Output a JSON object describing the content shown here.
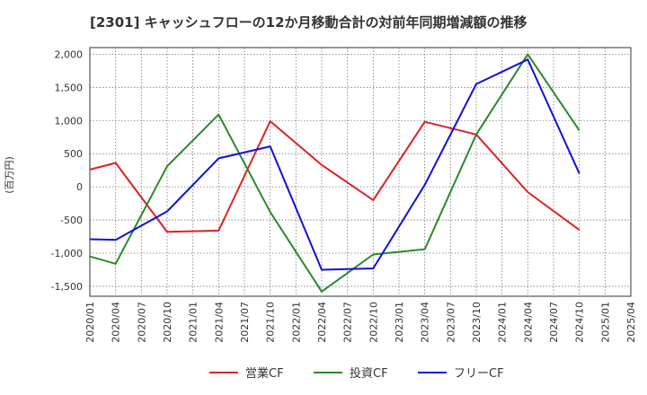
{
  "chart_data": {
    "type": "line",
    "title": "[2301]  キャッシュフローの12か月移動合計の対前年同期増減額の推移",
    "ylabel": "(百万円)",
    "xlabel": "",
    "ylim": [
      -1650,
      2100
    ],
    "yticks": [
      2000,
      1500,
      1000,
      500,
      0,
      -500,
      -1000,
      -1500
    ],
    "ytick_labels": [
      "2,000",
      "1,500",
      "1,000",
      "500",
      "0",
      "-500",
      "-1,000",
      "-1,500"
    ],
    "x_tick_labels": [
      "2020/01",
      "2020/04",
      "2020/07",
      "2020/10",
      "2021/01",
      "2021/04",
      "2021/07",
      "2021/10",
      "2022/01",
      "2022/04",
      "2022/07",
      "2022/10",
      "2023/01",
      "2023/04",
      "2023/07",
      "2023/10",
      "2024/01",
      "2024/04",
      "2024/07",
      "2024/10",
      "2025/01",
      "2025/04"
    ],
    "grid": true,
    "legend_position": "bottom",
    "series": [
      {
        "name": "営業CF",
        "color": "#e02020",
        "points": [
          {
            "x": "2020/01",
            "y": 260
          },
          {
            "x": "2020/04",
            "y": 360
          },
          {
            "x": "2020/10",
            "y": -680
          },
          {
            "x": "2021/04",
            "y": -660
          },
          {
            "x": "2021/10",
            "y": 990
          },
          {
            "x": "2022/04",
            "y": 330
          },
          {
            "x": "2022/10",
            "y": -200
          },
          {
            "x": "2023/04",
            "y": 980
          },
          {
            "x": "2023/10",
            "y": 790
          },
          {
            "x": "2024/04",
            "y": -80
          },
          {
            "x": "2024/10",
            "y": -650
          }
        ]
      },
      {
        "name": "投資CF",
        "color": "#2a8a2a",
        "points": [
          {
            "x": "2020/01",
            "y": -1050
          },
          {
            "x": "2020/04",
            "y": -1160
          },
          {
            "x": "2020/10",
            "y": 310
          },
          {
            "x": "2021/04",
            "y": 1090
          },
          {
            "x": "2021/10",
            "y": -380
          },
          {
            "x": "2022/04",
            "y": -1580
          },
          {
            "x": "2022/10",
            "y": -1020
          },
          {
            "x": "2023/04",
            "y": -940
          },
          {
            "x": "2023/10",
            "y": 790
          },
          {
            "x": "2024/04",
            "y": 2000
          },
          {
            "x": "2024/10",
            "y": 850
          }
        ]
      },
      {
        "name": "フリーCF",
        "color": "#1010e0",
        "points": [
          {
            "x": "2020/01",
            "y": -790
          },
          {
            "x": "2020/04",
            "y": -800
          },
          {
            "x": "2020/10",
            "y": -370
          },
          {
            "x": "2021/04",
            "y": 430
          },
          {
            "x": "2021/10",
            "y": 610
          },
          {
            "x": "2022/04",
            "y": -1250
          },
          {
            "x": "2022/10",
            "y": -1230
          },
          {
            "x": "2023/04",
            "y": 30
          },
          {
            "x": "2023/10",
            "y": 1550
          },
          {
            "x": "2024/04",
            "y": 1920
          },
          {
            "x": "2024/10",
            "y": 200
          }
        ]
      }
    ]
  }
}
